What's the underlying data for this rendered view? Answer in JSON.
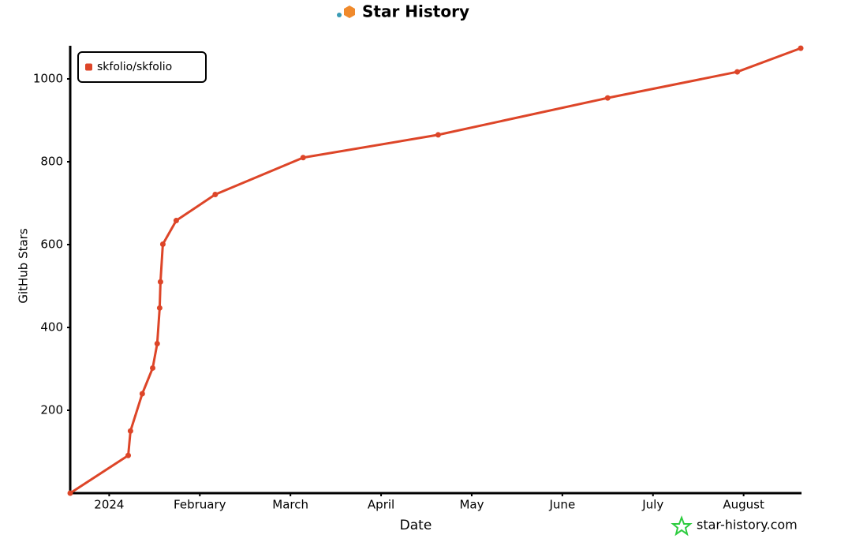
{
  "chart_data": {
    "type": "line",
    "title": "Star History",
    "x_label": "Date",
    "y_label": "GitHub Stars",
    "watermark": "star-history.com",
    "legend": "top-left",
    "xlim": [
      -0.43,
      7.63
    ],
    "ylim": [
      0,
      1080
    ],
    "xticks": [
      {
        "value": 0,
        "label": "2024"
      },
      {
        "value": 1,
        "label": "February"
      },
      {
        "value": 2,
        "label": "March"
      },
      {
        "value": 3,
        "label": "April"
      },
      {
        "value": 4,
        "label": "May"
      },
      {
        "value": 5,
        "label": "June"
      },
      {
        "value": 6,
        "label": "July"
      },
      {
        "value": 7,
        "label": "August"
      }
    ],
    "yticks": [
      200,
      400,
      600,
      800,
      1000
    ],
    "series": [
      {
        "name": "skfolio/skfolio",
        "color": "#dd4528",
        "x": [
          -0.43,
          0.21,
          0.235,
          0.365,
          0.48,
          0.53,
          0.557,
          0.566,
          0.592,
          0.74,
          1.17,
          2.14,
          3.63,
          5.5,
          6.93,
          7.63
        ],
        "values": [
          0,
          91,
          150,
          240,
          302,
          361,
          447,
          510,
          601,
          658,
          721,
          810,
          865,
          954,
          1017,
          1074
        ]
      }
    ]
  }
}
